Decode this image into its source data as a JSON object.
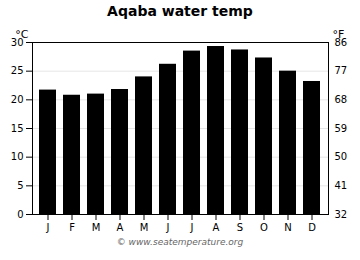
{
  "chart_data": {
    "type": "bar",
    "title": "Aqaba water temp",
    "categories": [
      "J",
      "F",
      "M",
      "A",
      "M",
      "J",
      "J",
      "A",
      "S",
      "O",
      "N",
      "D"
    ],
    "values": [
      21.7,
      20.8,
      21.0,
      21.8,
      24.0,
      26.2,
      28.5,
      29.3,
      28.7,
      27.3,
      25.0,
      23.2
    ],
    "ylabel": "°C",
    "ylim": [
      0,
      30
    ],
    "yticks": [
      0,
      5,
      10,
      15,
      20,
      25,
      30
    ],
    "y2label": "°F",
    "y2lim": [
      32,
      86
    ],
    "y2ticks": [
      32,
      41,
      50,
      59,
      68,
      77,
      86
    ],
    "grid": true,
    "annotations": [
      "© www.seatemperature.org"
    ]
  }
}
